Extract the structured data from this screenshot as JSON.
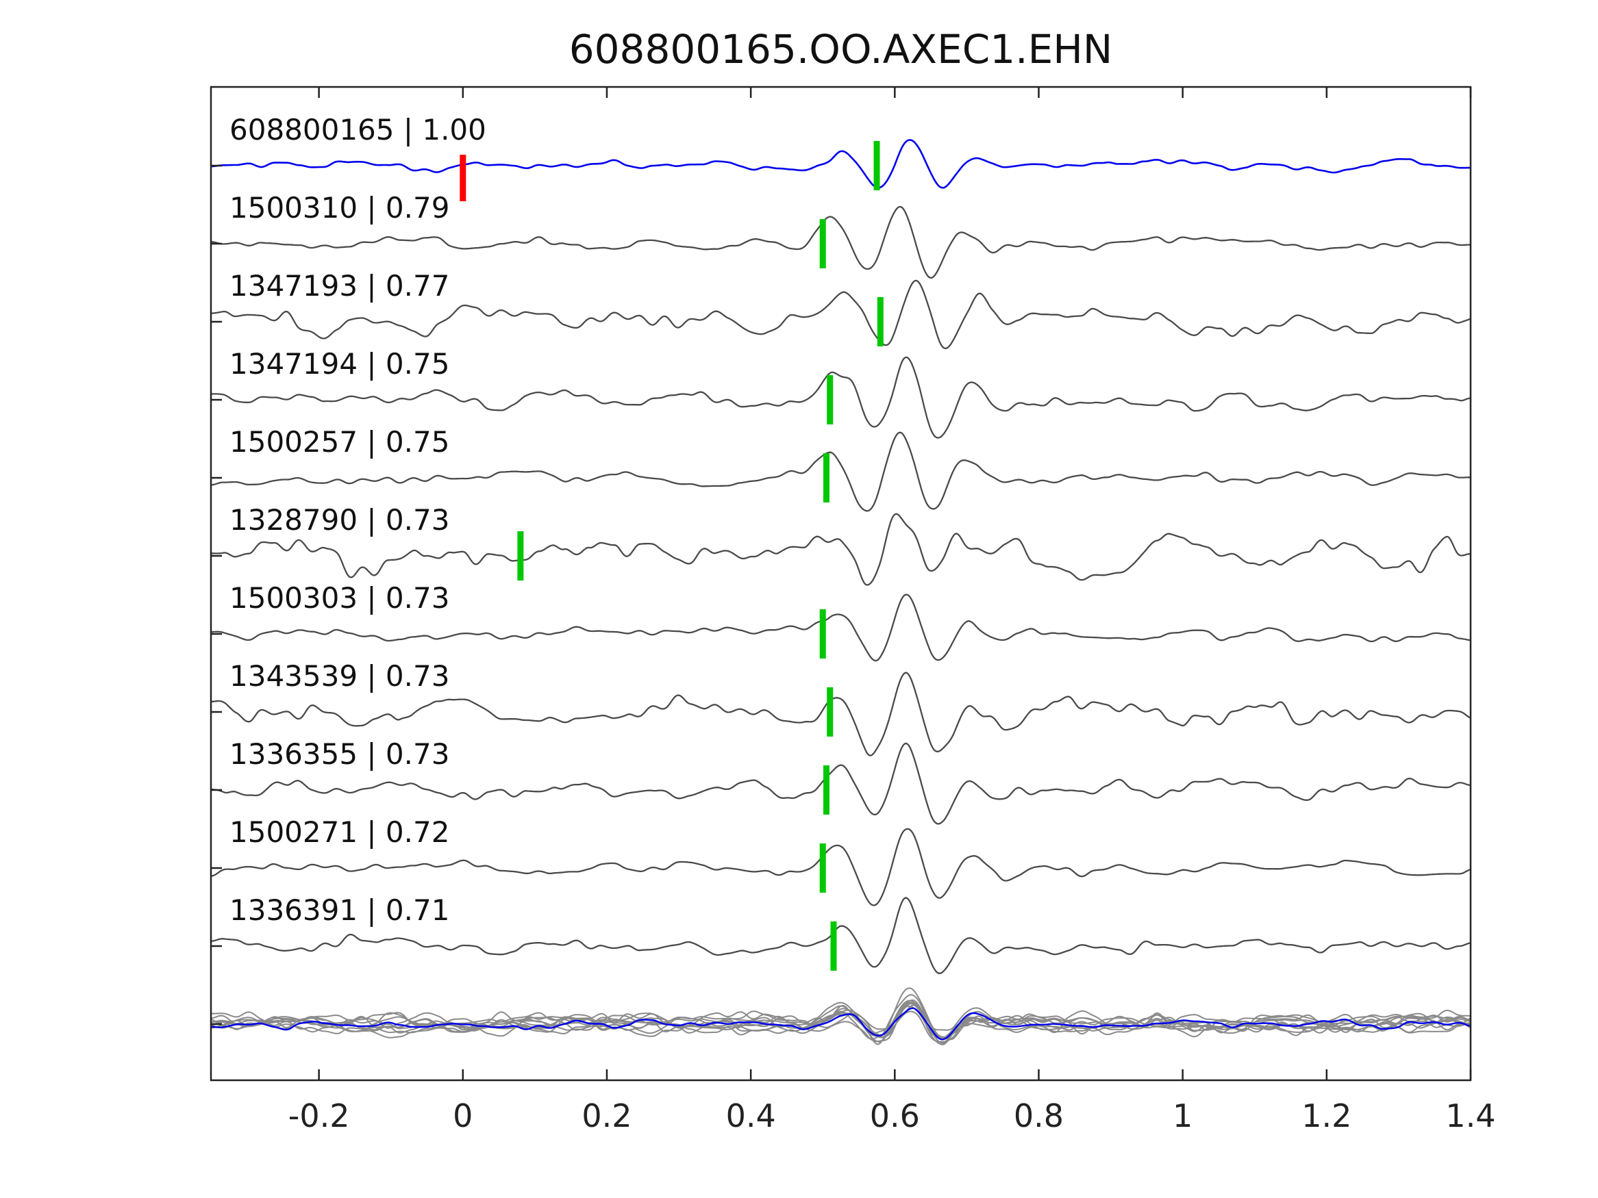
{
  "chart_data": {
    "type": "line",
    "title": "608800165.OO.AXEC1.EHN",
    "xlabel": "",
    "ylabel": "",
    "xlim": [
      -0.35,
      1.4
    ],
    "xticks": [
      -0.2,
      0,
      0.2,
      0.4,
      0.6,
      0.8,
      1.0,
      1.2,
      1.4
    ],
    "xtick_labels": [
      "-0.2",
      "0",
      "0.2",
      "0.4",
      "0.6",
      "0.8",
      "1",
      "1.2",
      "1.4"
    ],
    "grid": false,
    "legend": "none",
    "colors": {
      "trace": "#4a4a4a",
      "reference": "#0000ee",
      "pick": "#00c800",
      "reference_pick": "#ff0000",
      "axes": "#222222",
      "stack": "#8a8a8a",
      "label_text": "#111111"
    },
    "traces": [
      {
        "id": "608800165",
        "label": "608800165 | 1.00",
        "correlation": 1.0,
        "pick_time": 0.575,
        "ref_pick_time": 0.0,
        "is_reference": true,
        "arrival": 0.515,
        "amp": 38,
        "noise": 0.3,
        "seed": 11
      },
      {
        "id": "1500310",
        "label": "1500310 | 0.79",
        "correlation": 0.79,
        "pick_time": 0.5,
        "is_reference": false,
        "arrival": 0.5,
        "amp": 62,
        "noise": 0.22,
        "seed": 21
      },
      {
        "id": "1347193",
        "label": "1347193 | 0.77",
        "correlation": 0.77,
        "pick_time": 0.58,
        "is_reference": false,
        "arrival": 0.52,
        "amp": 58,
        "noise": 0.45,
        "seed": 31
      },
      {
        "id": "1347194",
        "label": "1347194 | 0.75",
        "correlation": 0.75,
        "pick_time": 0.51,
        "is_reference": false,
        "arrival": 0.51,
        "amp": 62,
        "noise": 0.3,
        "seed": 41
      },
      {
        "id": "1500257",
        "label": "1500257 | 0.75",
        "correlation": 0.75,
        "pick_time": 0.505,
        "is_reference": false,
        "arrival": 0.5,
        "amp": 62,
        "noise": 0.22,
        "seed": 51
      },
      {
        "id": "1328790",
        "label": "1328790 | 0.73",
        "correlation": 0.73,
        "pick_time": 0.08,
        "is_reference": false,
        "arrival": 0.5,
        "amp": 45,
        "noise": 0.78,
        "seed": 61
      },
      {
        "id": "1500303",
        "label": "1500303 | 0.73",
        "correlation": 0.73,
        "pick_time": 0.5,
        "is_reference": false,
        "arrival": 0.51,
        "amp": 58,
        "noise": 0.26,
        "seed": 71
      },
      {
        "id": "1343539",
        "label": "1343539 | 0.73",
        "correlation": 0.73,
        "pick_time": 0.51,
        "is_reference": false,
        "arrival": 0.51,
        "amp": 60,
        "noise": 0.46,
        "seed": 81
      },
      {
        "id": "1336355",
        "label": "1336355 | 0.73",
        "correlation": 0.73,
        "pick_time": 0.505,
        "is_reference": false,
        "arrival": 0.51,
        "amp": 60,
        "noise": 0.32,
        "seed": 91
      },
      {
        "id": "1500271",
        "label": "1500271 | 0.72",
        "correlation": 0.72,
        "pick_time": 0.5,
        "is_reference": false,
        "arrival": 0.51,
        "amp": 62,
        "noise": 0.22,
        "seed": 101
      },
      {
        "id": "1336391",
        "label": "1336391 | 0.71",
        "correlation": 0.71,
        "pick_time": 0.515,
        "is_reference": false,
        "arrival": 0.51,
        "amp": 58,
        "noise": 0.3,
        "seed": 111
      }
    ],
    "stack": {
      "gray_count": 10,
      "arrival": 0.515,
      "amp": 30,
      "noise": 0.55,
      "seed_base": 200,
      "blue_overlay": {
        "arrival": 0.515,
        "amp": 26,
        "noise": 0.38,
        "seed": 333
      }
    }
  }
}
